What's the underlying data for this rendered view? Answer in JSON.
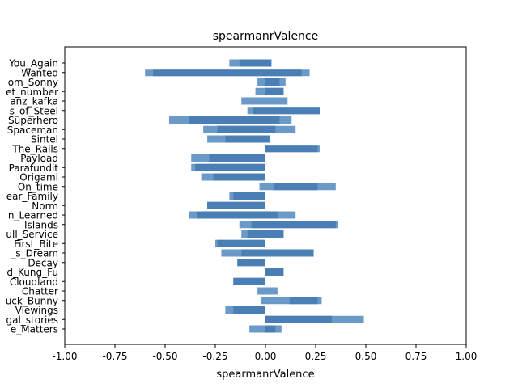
{
  "chart_data": {
    "type": "bar",
    "orientation": "horizontal",
    "title": "spearmanrValence",
    "xlabel": "spearmanrValence",
    "ylabel": "",
    "xlim": [
      -1.0,
      1.0
    ],
    "xticks": [
      "-1.00",
      "-0.75",
      "-0.50",
      "-0.25",
      "0.00",
      "0.25",
      "0.50",
      "0.75",
      "1.00"
    ],
    "grid": false,
    "legend": "none",
    "colors": {
      "back": "#6b9ac9",
      "front": "#4a7fb5"
    },
    "categories": [
      "You_Again",
      "Wanted",
      "om_Sonny",
      "et_number",
      "anz_kafka",
      "s_of_Steel",
      "Superhero",
      "Spaceman",
      "Sintel",
      "The_Rails",
      "Payload",
      "Parafundit",
      "Origami",
      "On_time",
      "ear_Family",
      "Norm",
      "n_Learned",
      "Islands",
      "ull_Service",
      "First_Bite",
      "_s_Dream",
      "Decay",
      "d_Kung_Fu",
      "Cloudland",
      "Chatter",
      "uck_Bunny",
      "Viewings",
      "gal_stories",
      "e_Matters"
    ],
    "series": [
      {
        "values": [
          [
            -0.18,
            0.02
          ],
          [
            -0.6,
            0.22
          ],
          [
            -0.04,
            0.1
          ],
          [
            -0.05,
            0.09
          ],
          [
            -0.12,
            0.11
          ],
          [
            -0.09,
            0.27
          ],
          [
            -0.48,
            0.13
          ],
          [
            -0.31,
            0.15
          ],
          [
            -0.29,
            0.01
          ],
          [
            0.0,
            0.27
          ],
          [
            -0.37,
            0.0
          ],
          [
            -0.37,
            0.0
          ],
          [
            -0.32,
            0.0
          ],
          [
            -0.03,
            0.35
          ],
          [
            -0.18,
            0.0
          ],
          [
            -0.29,
            0.0
          ],
          [
            -0.38,
            0.15
          ],
          [
            -0.13,
            0.36
          ],
          [
            -0.12,
            0.09
          ],
          [
            -0.25,
            0.0
          ],
          [
            -0.22,
            0.24
          ],
          [
            -0.14,
            0.0
          ],
          [
            0.0,
            0.09
          ],
          [
            -0.16,
            0.0
          ],
          [
            -0.04,
            0.06
          ],
          [
            -0.02,
            0.28
          ],
          [
            -0.2,
            0.0
          ],
          [
            0.0,
            0.49
          ],
          [
            -0.08,
            0.08
          ]
        ]
      },
      {
        "values": [
          [
            -0.13,
            0.03
          ],
          [
            -0.56,
            0.18
          ],
          [
            -0.0,
            0.07
          ],
          [
            0.0,
            0.09
          ],
          [
            -0.0,
            0.0
          ],
          [
            -0.06,
            0.27
          ],
          [
            -0.38,
            0.07
          ],
          [
            -0.24,
            0.05
          ],
          [
            -0.2,
            0.02
          ],
          [
            0.0,
            0.26
          ],
          [
            -0.28,
            0.0
          ],
          [
            -0.35,
            0.0
          ],
          [
            -0.26,
            0.0
          ],
          [
            0.04,
            0.26
          ],
          [
            -0.16,
            0.0
          ],
          [
            -0.29,
            0.0
          ],
          [
            -0.34,
            0.06
          ],
          [
            -0.07,
            0.35
          ],
          [
            -0.09,
            0.09
          ],
          [
            -0.24,
            0.0
          ],
          [
            -0.12,
            0.24
          ],
          [
            -0.14,
            0.0
          ],
          [
            0.0,
            0.09
          ],
          [
            -0.16,
            0.0
          ],
          [
            -0.0,
            0.0
          ],
          [
            0.12,
            0.26
          ],
          [
            -0.16,
            0.0
          ],
          [
            0.0,
            0.33
          ],
          [
            0.0,
            0.05
          ]
        ]
      }
    ]
  }
}
